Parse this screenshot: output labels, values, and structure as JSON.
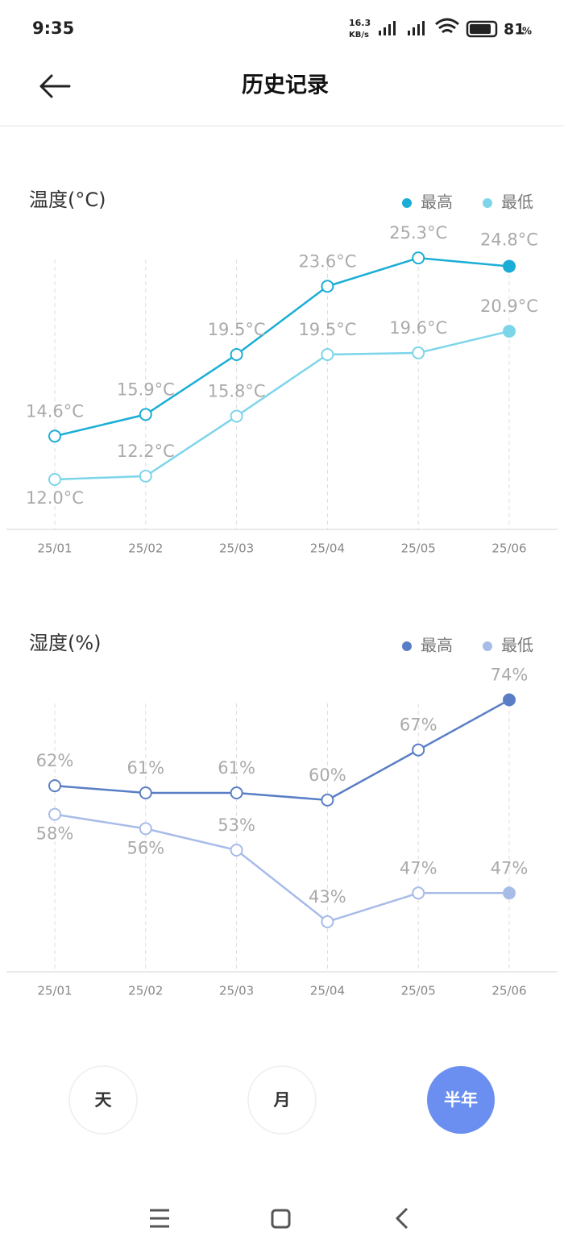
{
  "status_bar": {
    "time": "9:35",
    "speed": "16.3",
    "speed_unit": "KB/s",
    "battery": "81",
    "battery_unit": "%"
  },
  "header": {
    "title": "历史记录"
  },
  "chart_data": [
    {
      "type": "line",
      "title": "温度(°C)",
      "categories": [
        "25/01",
        "25/02",
        "25/03",
        "25/04",
        "25/05",
        "25/06"
      ],
      "series": [
        {
          "name": "最高",
          "color": "#1aaed6",
          "values": [
            14.6,
            15.9,
            19.5,
            23.6,
            25.3,
            24.8
          ],
          "value_labels": [
            "14.6°C",
            "15.9°C",
            "19.5°C",
            "23.6°C",
            "25.3°C",
            "24.8°C"
          ]
        },
        {
          "name": "最低",
          "color": "#7dd5ea",
          "values": [
            12.0,
            12.2,
            15.8,
            19.5,
            19.6,
            20.9
          ],
          "value_labels": [
            "12.0°C",
            "12.2°C",
            "15.8°C",
            "19.5°C",
            "19.6°C",
            "20.9°C"
          ]
        }
      ],
      "ylim": [
        9,
        27
      ]
    },
    {
      "type": "line",
      "title": "湿度(%)",
      "categories": [
        "25/01",
        "25/02",
        "25/03",
        "25/04",
        "25/05",
        "25/06"
      ],
      "series": [
        {
          "name": "最高",
          "color": "#5a7ec6",
          "values": [
            62,
            61,
            61,
            60,
            67,
            74
          ],
          "value_labels": [
            "62%",
            "61%",
            "61%",
            "60%",
            "67%",
            "74%"
          ]
        },
        {
          "name": "最低",
          "color": "#a8bce8",
          "values": [
            58,
            56,
            53,
            43,
            47,
            47
          ],
          "value_labels": [
            "58%",
            "56%",
            "53%",
            "43%",
            "47%",
            "47%"
          ]
        }
      ],
      "ylim": [
        36,
        78
      ]
    }
  ],
  "tabs": [
    "天",
    "月",
    "半年"
  ]
}
